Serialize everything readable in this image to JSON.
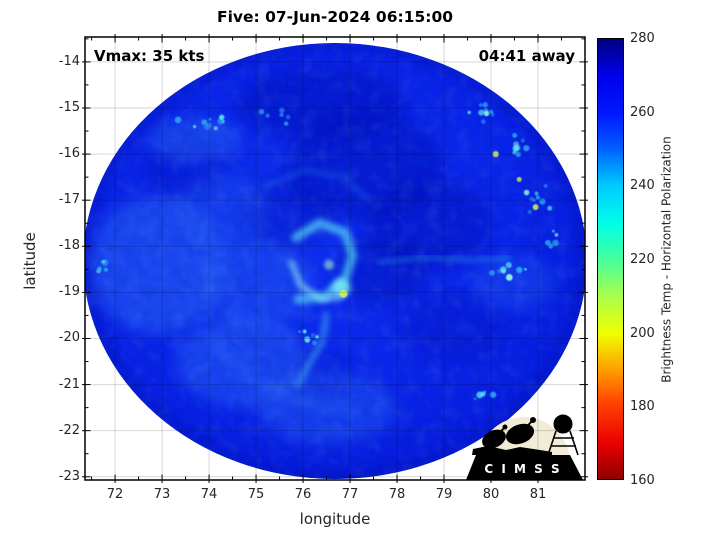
{
  "figure": {
    "title": "Five: 07-Jun-2024 06:15:00",
    "background": "#ffffff"
  },
  "annotations": {
    "vmax": "Vmax: 35 kts",
    "eta": "04:41 away"
  },
  "axes": {
    "xlabel": "longitude",
    "ylabel": "latitude",
    "x_ticks": [
      72,
      73,
      74,
      75,
      76,
      77,
      78,
      79,
      80,
      81
    ],
    "y_ticks": [
      -14,
      -15,
      -16,
      -17,
      -18,
      -19,
      -20,
      -21,
      -22,
      -23
    ],
    "xlim": [
      71.36,
      82.0
    ],
    "ylim": [
      -23.07,
      -13.46
    ],
    "minor_step": 0.5,
    "grid": true,
    "tick_color": "#262626",
    "box_color": "#000000"
  },
  "colorbar": {
    "label": "Brightness Temp - Horizontal Polarization",
    "ticks": [
      280,
      260,
      240,
      220,
      200,
      180,
      160
    ],
    "min": 160,
    "max": 280,
    "stops": [
      [
        "#00007f",
        0
      ],
      [
        "#0000e8",
        8
      ],
      [
        "#0018ff",
        17
      ],
      [
        "#0060ff",
        25
      ],
      [
        "#00c8ff",
        33
      ],
      [
        "#00ffe8",
        42
      ],
      [
        "#44ff9c",
        50
      ],
      [
        "#a4ff50",
        58
      ],
      [
        "#f0ff00",
        67
      ],
      [
        "#ffa000",
        75
      ],
      [
        "#ff4000",
        83
      ],
      [
        "#e80000",
        92
      ],
      [
        "#8f0000",
        100
      ]
    ]
  },
  "logo": {
    "text": "C I M S S",
    "moon_color": "#f2ecd6",
    "banner_color": "#000000",
    "text_color": "#ffffff"
  },
  "chart_data": {
    "type": "heatmap",
    "title": "Five: 07-Jun-2024 06:15:00",
    "xlabel": "longitude",
    "ylabel": "latitude",
    "xlim": [
      71.36,
      82.0
    ],
    "ylim": [
      -23.07,
      -13.46
    ],
    "colorbar_label": "Brightness Temp - Horizontal Polarization",
    "colorbar_range": [
      160,
      280
    ],
    "description": "Microwave brightness temperature (horizontal polarization) swath of Tropical Cyclone Five; circular swath dominated by 260-275 K blues with scattered 230-245 K cyan convective speckles and a ~210 K yellow-green core pixel near the center.",
    "storm": {
      "name": "Five",
      "datetime": "07-Jun-2024 06:15:00",
      "vmax_kts": 35,
      "eta": "04:41 away",
      "center_lon": 76.85,
      "center_lat": -18.95
    },
    "swath": {
      "center_lon": 76.68,
      "center_lat": -18.32,
      "radius_lon_deg": 5.36,
      "radius_lat_deg": 4.73,
      "base_temp_k": 265,
      "base_color_center": "#1030f2",
      "base_color_mid": "#0a22ea",
      "base_color_edge": "#0214d2",
      "rim_color": "#000e9e"
    },
    "patches": [
      {
        "lon": 76.4,
        "lat": -14.9,
        "rlon": 1.8,
        "rlat": 0.8,
        "color": "#0008b8",
        "opacity": 0.5
      },
      {
        "lon": 77.3,
        "lat": -16.3,
        "rlon": 1.7,
        "rlat": 1.2,
        "color": "#0008b8",
        "opacity": 0.5
      },
      {
        "lon": 78.7,
        "lat": -17.5,
        "rlon": 1.3,
        "rlat": 1.0,
        "color": "#0008b8",
        "opacity": 0.45
      },
      {
        "lon": 77.7,
        "lat": -18.5,
        "rlon": 1.0,
        "rlat": 0.8,
        "color": "#0008b8",
        "opacity": 0.45
      },
      {
        "lon": 75.6,
        "lat": -17.3,
        "rlon": 1.0,
        "rlat": 0.8,
        "color": "#0008b8",
        "opacity": 0.35
      },
      {
        "lon": 79.2,
        "lat": -19.8,
        "rlon": 1.1,
        "rlat": 0.8,
        "color": "#0008b8",
        "opacity": 0.3
      },
      {
        "lon": 73.5,
        "lat": -16.3,
        "rlon": 0.9,
        "rlat": 0.7,
        "color": "#0008b8",
        "opacity": 0.3
      },
      {
        "lon": 76.2,
        "lat": -20.9,
        "rlon": 0.9,
        "rlat": 0.6,
        "color": "#0008b8",
        "opacity": 0.25
      },
      {
        "lon": 72.9,
        "lat": -18.4,
        "rlon": 1.5,
        "rlat": 1.5,
        "color": "#2e6bf8",
        "opacity": 0.5
      },
      {
        "lon": 74.7,
        "lat": -20.5,
        "rlon": 1.4,
        "rlat": 1.0,
        "color": "#2e6bf8",
        "opacity": 0.45
      },
      {
        "lon": 76.5,
        "lat": -21.5,
        "rlon": 1.5,
        "rlat": 0.8,
        "color": "#2e6bf8",
        "opacity": 0.4
      },
      {
        "lon": 73.7,
        "lat": -15.7,
        "rlon": 1.0,
        "rlat": 0.5,
        "color": "#2e6bf8",
        "opacity": 0.45
      },
      {
        "lon": 75.0,
        "lat": -18.8,
        "rlon": 1.2,
        "rlat": 1.0,
        "color": "#2e6bf8",
        "opacity": 0.35
      },
      {
        "lon": 80.5,
        "lat": -18.8,
        "rlon": 0.9,
        "rlat": 0.6,
        "color": "#2e6bf8",
        "opacity": 0.3
      },
      {
        "lon": 74.3,
        "lat": -17.2,
        "rlon": 1.0,
        "rlat": 0.8,
        "color": "#2e6bf8",
        "opacity": 0.3
      }
    ],
    "streaks": [
      {
        "points": [
          [
            75.85,
            -17.8
          ],
          [
            76.35,
            -17.5
          ],
          [
            76.9,
            -17.7
          ],
          [
            77.05,
            -18.2
          ],
          [
            76.9,
            -18.7
          ],
          [
            76.45,
            -19.1
          ],
          [
            75.9,
            -19.15
          ]
        ],
        "color": "#57d8f4",
        "width": 9,
        "opacity": 0.7,
        "blur": "b3"
      },
      {
        "points": [
          [
            75.75,
            -18.35
          ],
          [
            75.95,
            -18.85
          ],
          [
            76.4,
            -19.15
          ],
          [
            76.8,
            -19.1
          ]
        ],
        "color": "#8ee9f5",
        "width": 6,
        "opacity": 0.65,
        "blur": "b3"
      },
      {
        "points": [
          [
            76.5,
            -19.5
          ],
          [
            76.4,
            -20.1
          ],
          [
            76.1,
            -20.6
          ],
          [
            75.9,
            -21.0
          ]
        ],
        "color": "#3fa8f2",
        "width": 7,
        "opacity": 0.55,
        "blur": "b3"
      },
      {
        "points": [
          [
            77.6,
            -18.35
          ],
          [
            78.6,
            -18.25
          ],
          [
            79.6,
            -18.3
          ],
          [
            80.4,
            -18.25
          ]
        ],
        "color": "#2fc0ea",
        "width": 4,
        "opacity": 0.4,
        "blur": "b3"
      },
      {
        "points": [
          [
            75.2,
            -16.7
          ],
          [
            76.0,
            -16.35
          ],
          [
            76.9,
            -16.5
          ],
          [
            77.4,
            -17.0
          ]
        ],
        "color": "#2a7df0",
        "width": 5,
        "opacity": 0.35,
        "blur": "b3"
      },
      {
        "points": [
          [
            74.0,
            -20.0
          ],
          [
            74.8,
            -20.8
          ],
          [
            75.8,
            -21.35
          ],
          [
            77.0,
            -21.55
          ]
        ],
        "color": "#2e6bf8",
        "width": 12,
        "opacity": 0.3,
        "blur": "b5"
      }
    ],
    "spots": [
      {
        "lon": 76.82,
        "lat": -18.9,
        "r": 9,
        "color": "#7deef5",
        "opacity": 0.85,
        "blur": "b3"
      },
      {
        "lon": 76.86,
        "lat": -19.03,
        "r": 4,
        "color": "#c6f063",
        "opacity": 0.95,
        "blur": "b1"
      },
      {
        "lon": 76.55,
        "lat": -18.4,
        "r": 5,
        "color": "#9ff0c8",
        "opacity": 0.6,
        "blur": "b2"
      },
      {
        "lon": 80.1,
        "lat": -16.0,
        "r": 3,
        "color": "#d8f060",
        "opacity": 0.9,
        "blur": "b1"
      },
      {
        "lon": 80.95,
        "lat": -17.15,
        "r": 3,
        "color": "#cdf05a",
        "opacity": 0.9,
        "blur": "b1"
      },
      {
        "lon": 80.6,
        "lat": -16.55,
        "r": 2.5,
        "color": "#bff05a",
        "opacity": 0.85,
        "blur": "b1"
      }
    ],
    "speckle_clusters": [
      {
        "lon": 79.85,
        "lat": -15.1,
        "dlon": 0.55,
        "dlat": 0.3,
        "n": 10
      },
      {
        "lon": 80.6,
        "lat": -15.9,
        "dlon": 0.45,
        "dlat": 0.45,
        "n": 10
      },
      {
        "lon": 81.0,
        "lat": -16.9,
        "dlon": 0.35,
        "dlat": 0.5,
        "n": 9
      },
      {
        "lon": 81.25,
        "lat": -17.9,
        "dlon": 0.3,
        "dlat": 0.3,
        "n": 5
      },
      {
        "lon": 73.9,
        "lat": -15.35,
        "dlon": 0.65,
        "dlat": 0.2,
        "n": 10
      },
      {
        "lon": 71.75,
        "lat": -18.4,
        "dlon": 0.3,
        "dlat": 0.35,
        "n": 6
      },
      {
        "lon": 80.3,
        "lat": -18.55,
        "dlon": 0.6,
        "dlat": 0.3,
        "n": 8
      },
      {
        "lon": 76.15,
        "lat": -19.95,
        "dlon": 0.5,
        "dlat": 0.3,
        "n": 7,
        "palette": [
          "#3fa8f2",
          "#57d8f4",
          "#2e8df0"
        ]
      },
      {
        "lon": 79.9,
        "lat": -21.15,
        "dlon": 0.45,
        "dlat": 0.25,
        "n": 5
      },
      {
        "lon": 75.4,
        "lat": -15.2,
        "dlon": 0.6,
        "dlat": 0.25,
        "n": 6,
        "palette": [
          "#2e8df0",
          "#35b8f0"
        ]
      }
    ],
    "speckle_palette": [
      "#23c8f0",
      "#55e6f4",
      "#2e9df0",
      "#8ff0dc"
    ]
  }
}
